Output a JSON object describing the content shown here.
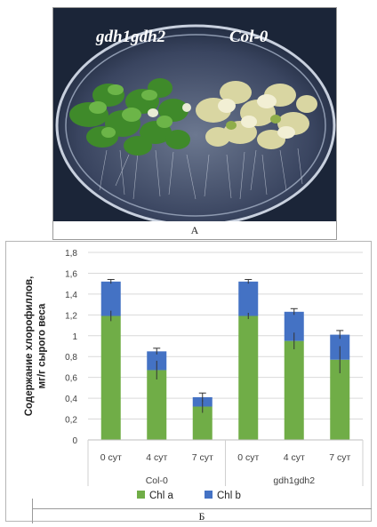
{
  "panel_a": {
    "caption": "А",
    "photo_labels": [
      "gdh1gdh2",
      "Col-0"
    ]
  },
  "panel_b": {
    "caption": "Б"
  },
  "colors": {
    "chl_a": "#70ad47",
    "chl_b": "#4472c4",
    "axis": "#d9d9d9",
    "photo_bg": "#1b2538"
  },
  "chart_data": {
    "type": "bar",
    "stacked": true,
    "ylabel": "Содержание хлорофиллов, мг/г сырого веса",
    "xlabel": "",
    "ylim": [
      0,
      1.8
    ],
    "yticks": [
      "0",
      "0,2",
      "0,4",
      "0,6",
      "0,8",
      "1",
      "1,2",
      "1,4",
      "1,6",
      "1,8"
    ],
    "groups": [
      {
        "name": "Col-0",
        "categories": [
          "0 сут",
          "4 сут",
          "7 сут"
        ]
      },
      {
        "name": "gdh1gdh2",
        "categories": [
          "0 сут",
          "4 сут",
          "7 сут"
        ]
      }
    ],
    "series": [
      {
        "name": "Chl a",
        "values": [
          1.19,
          0.67,
          0.32,
          1.19,
          0.95,
          0.77
        ],
        "errors": [
          0.05,
          0.09,
          0.06,
          0.03,
          0.08,
          0.13
        ]
      },
      {
        "name": "Chl b",
        "values": [
          0.33,
          0.18,
          0.09,
          0.33,
          0.28,
          0.24
        ],
        "errors": [
          0.02,
          0.03,
          0.04,
          0.02,
          0.03,
          0.04
        ]
      }
    ],
    "legend": [
      "Chl a",
      "Chl b"
    ],
    "legend_position": "bottom",
    "grid": true
  }
}
